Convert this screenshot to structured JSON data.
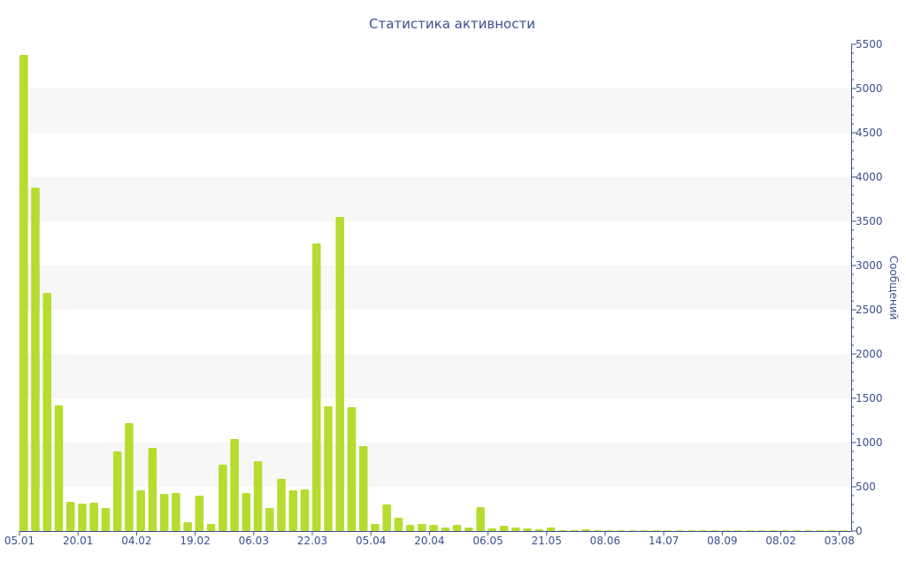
{
  "chart_data": {
    "type": "bar",
    "title": "Статистика активности",
    "xlabel": "",
    "ylabel": "Сообщений",
    "ylim": [
      0,
      5500
    ],
    "y_ticks": [
      0,
      500,
      1000,
      1500,
      2000,
      2500,
      3000,
      3500,
      4000,
      4500,
      5000,
      5500
    ],
    "y_axis_position": "right",
    "grid": "alternating horizontal bands",
    "x_tick_labels": [
      "05.01",
      "20.01",
      "04.02",
      "19.02",
      "06.03",
      "22.03",
      "05.04",
      "20.04",
      "06.05",
      "21.05",
      "08.06",
      "14.07",
      "08.09",
      "08.02",
      "03.08"
    ],
    "x_tick_bar_index": [
      0,
      5,
      10,
      15,
      20,
      25,
      30,
      35,
      40,
      45,
      50,
      55,
      60,
      65,
      70
    ],
    "values": [
      5380,
      3880,
      2690,
      1420,
      330,
      310,
      320,
      260,
      900,
      1220,
      460,
      940,
      420,
      430,
      100,
      400,
      80,
      750,
      1040,
      430,
      790,
      260,
      590,
      460,
      470,
      3250,
      1410,
      3550,
      1400,
      960,
      80,
      300,
      150,
      70,
      80,
      70,
      40,
      70,
      40,
      270,
      30,
      60,
      40,
      30,
      20,
      40,
      10,
      10,
      20,
      10,
      5,
      5,
      5,
      5,
      5,
      5,
      5,
      5,
      5,
      5,
      5,
      5,
      5,
      5,
      5,
      5,
      5,
      5,
      5,
      5,
      5
    ],
    "colors": {
      "bar": "#b5dc2e",
      "axis": "#3c4f8c",
      "band": "#f7f7f7"
    }
  }
}
